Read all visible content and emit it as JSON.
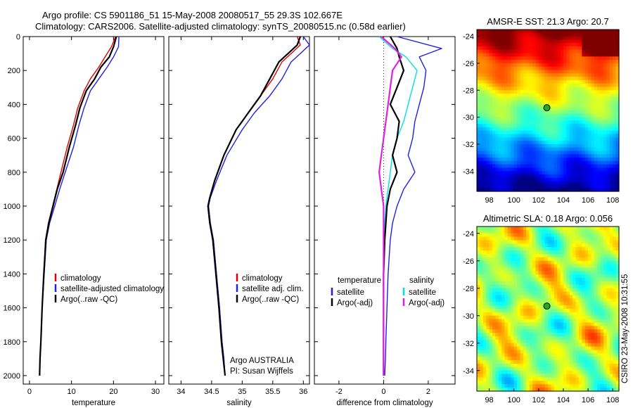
{
  "header": {
    "title_line1": "Argo profile: CS 5901186_51 15-May-2008 20080517_55 29.3S 102.667E",
    "title_line2": "Climatology: CARS2006. Satellite-adjusted climatology: synTS_20080515.nc (0.58d earlier)"
  },
  "side_label": "CSIRO 23-May-2008 10:31:55",
  "colors": {
    "climatology": "#dd0000",
    "satellite": "#1f1fe6",
    "argo": "#000000",
    "satellite_diff_salinity": "#00e0e0",
    "argo_diff_salinity": "#e020e0",
    "float_marker": "#22aa22"
  },
  "chart_data": [
    {
      "type": "line",
      "xlabel": "temperature",
      "ylabel": "",
      "xlim": [
        -1.5,
        32
      ],
      "ylim": [
        2050,
        0
      ],
      "y_reversed": true,
      "xticks": [
        0,
        10,
        20,
        30
      ],
      "yticks": [
        0,
        200,
        400,
        600,
        800,
        1000,
        1200,
        1400,
        1600,
        1800,
        2000
      ],
      "legend": [
        "climatology",
        "satellite-adjusted climatology",
        "Argo(..raw -QC)"
      ],
      "legend_position": "lower-right",
      "series": [
        {
          "name": "climatology",
          "color_key": "climatology",
          "x": [
            20.5,
            19.5,
            18.0,
            16.5,
            14.5,
            13.0,
            11.5,
            10.5,
            9.0,
            7.5,
            6.5,
            5.5,
            4.5,
            3.8,
            3.4,
            3.0,
            2.7,
            2.5,
            2.4
          ],
          "y": [
            0,
            60,
            120,
            180,
            250,
            320,
            420,
            520,
            650,
            800,
            900,
            1000,
            1100,
            1200,
            1400,
            1600,
            1800,
            1900,
            2000
          ]
        },
        {
          "name": "satellite-adjusted climatology",
          "color_key": "satellite",
          "x": [
            21.3,
            21.2,
            20.0,
            18.5,
            16.5,
            14.5,
            13.0,
            11.8,
            10.5,
            8.5,
            7.2,
            6.0,
            4.8,
            4.0,
            3.5,
            3.0,
            2.7,
            2.5,
            2.4
          ],
          "y": [
            0,
            60,
            120,
            180,
            250,
            320,
            420,
            520,
            650,
            800,
            900,
            1000,
            1100,
            1200,
            1400,
            1600,
            1800,
            1900,
            2000
          ]
        },
        {
          "name": "Argo(..raw -QC)",
          "color_key": "argo",
          "x": [
            20.7,
            20.0,
            19.0,
            17.0,
            15.5,
            13.5,
            12.0,
            11.0,
            9.5,
            8.0,
            6.6,
            5.6,
            4.6,
            3.9,
            3.4,
            3.0,
            2.7,
            2.5,
            2.4
          ],
          "y": [
            0,
            60,
            120,
            180,
            250,
            320,
            420,
            520,
            650,
            800,
            900,
            1000,
            1100,
            1200,
            1400,
            1600,
            1800,
            1900,
            2000
          ]
        }
      ]
    },
    {
      "type": "line",
      "xlabel": "salinity",
      "ylabel": "",
      "xlim": [
        33.8,
        36.1
      ],
      "ylim": [
        2050,
        0
      ],
      "y_reversed": true,
      "xticks": [
        34,
        34.5,
        35,
        35.5,
        36
      ],
      "legend": [
        "climatology",
        "satellite adj. clim.",
        "Argo(..raw -QC)"
      ],
      "legend_position": "lower-right",
      "annotations": [
        "Argo AUSTRALIA",
        "PI: Susan Wijffels"
      ],
      "series": [
        {
          "name": "climatology",
          "color_key": "climatology",
          "x": [
            35.9,
            35.95,
            35.8,
            35.65,
            35.5,
            35.3,
            35.1,
            34.9,
            34.7,
            34.55,
            34.47,
            34.45,
            34.48,
            34.53,
            34.58,
            34.63,
            34.67,
            34.7,
            34.72
          ],
          "y": [
            0,
            50,
            100,
            150,
            250,
            350,
            450,
            550,
            700,
            850,
            950,
            1000,
            1100,
            1200,
            1400,
            1600,
            1800,
            1900,
            2000
          ]
        },
        {
          "name": "satellite adj. clim.",
          "color_key": "satellite",
          "x": [
            36.0,
            36.1,
            35.95,
            35.8,
            35.65,
            35.45,
            35.2,
            35.0,
            34.75,
            34.58,
            34.48,
            34.45,
            34.48,
            34.53,
            34.58,
            34.63,
            34.67,
            34.7,
            34.72
          ],
          "y": [
            0,
            50,
            100,
            150,
            250,
            350,
            450,
            550,
            700,
            850,
            950,
            1000,
            1100,
            1200,
            1400,
            1600,
            1800,
            1900,
            2000
          ]
        },
        {
          "name": "Argo(..raw -QC)",
          "color_key": "argo",
          "x": [
            35.95,
            35.9,
            35.75,
            35.6,
            35.45,
            35.3,
            35.1,
            34.9,
            34.7,
            34.55,
            34.47,
            34.44,
            34.47,
            34.52,
            34.57,
            34.62,
            34.66,
            34.69,
            34.72
          ],
          "y": [
            0,
            50,
            100,
            150,
            250,
            350,
            450,
            550,
            700,
            850,
            950,
            1000,
            1100,
            1200,
            1400,
            1600,
            1800,
            1900,
            2000
          ]
        }
      ]
    },
    {
      "type": "line",
      "xlabel": "difference from climatology",
      "ylabel": "",
      "xlim": [
        -3.1,
        3.2
      ],
      "ylim": [
        2050,
        0
      ],
      "y_reversed": true,
      "xticks": [
        -2,
        0,
        2
      ],
      "legend_groups": [
        {
          "title": "temperature",
          "entries": [
            "satellite",
            "Argo(-adj)"
          ]
        },
        {
          "title": "salinity",
          "entries": [
            "satellite",
            "Argo(-adj)"
          ]
        }
      ],
      "legend_position": "lower-center",
      "series": [
        {
          "name": "temperature satellite",
          "color_key": "satellite",
          "x": [
            0.6,
            2.6,
            1.6,
            1.9,
            1.8,
            1.6,
            1.4,
            1.3,
            1.1,
            1.4,
            0.9,
            0.6,
            0.4,
            0.3,
            0.2,
            0.15,
            0.1,
            0.08,
            0.05
          ],
          "y": [
            0,
            70,
            120,
            200,
            300,
            400,
            500,
            600,
            700,
            800,
            900,
            1000,
            1100,
            1200,
            1400,
            1600,
            1800,
            1900,
            2000
          ]
        },
        {
          "name": "salinity satellite",
          "color_key": "satellite_diff_salinity",
          "x": [
            -0.2,
            0.4,
            1.0,
            1.5,
            1.3,
            1.1,
            0.9,
            0.6,
            0.4,
            0.3,
            0.2,
            0.1,
            0.05,
            0.0,
            0.0,
            0.0,
            0.0,
            0.0,
            0.0
          ],
          "y": [
            0,
            70,
            120,
            200,
            300,
            400,
            500,
            600,
            700,
            800,
            900,
            1000,
            1100,
            1200,
            1400,
            1600,
            1800,
            1900,
            2000
          ]
        },
        {
          "name": "temperature Argo(-adj)",
          "color_key": "argo",
          "x": [
            0.3,
            0.6,
            0.7,
            0.9,
            0.6,
            0.3,
            0.7,
            0.6,
            0.4,
            0.6,
            0.3,
            0.15,
            0.1,
            0.05,
            0.0,
            0.0,
            0.0,
            0.0,
            0.0
          ],
          "y": [
            0,
            70,
            120,
            200,
            300,
            400,
            500,
            600,
            700,
            800,
            900,
            1000,
            1100,
            1200,
            1400,
            1600,
            1800,
            1900,
            2000
          ]
        },
        {
          "name": "salinity Argo(-adj)",
          "color_key": "argo_diff_salinity",
          "x": [
            -0.1,
            0.5,
            0.8,
            0.4,
            0.3,
            0.2,
            0.1,
            0.0,
            -0.1,
            -0.2,
            -0.1,
            0.0,
            0.0,
            0.0,
            0.0,
            0.0,
            0.0,
            0.0,
            0.0
          ],
          "y": [
            0,
            70,
            120,
            200,
            300,
            400,
            500,
            600,
            700,
            800,
            900,
            1000,
            1100,
            1200,
            1400,
            1600,
            1800,
            1900,
            2000
          ]
        }
      ]
    },
    {
      "type": "heatmap",
      "title": "AMSR-E SST: 21.3 Argo: 20.7",
      "xlim": [
        97,
        108.5
      ],
      "ylim": [
        -35.5,
        -23.5
      ],
      "xticks": [
        98,
        100,
        102,
        104,
        106,
        108
      ],
      "yticks": [
        -24,
        -26,
        -28,
        -30,
        -32,
        -34
      ],
      "colormap": "jet",
      "float_position": [
        102.667,
        -29.3
      ]
    },
    {
      "type": "heatmap",
      "title": "Altimetric SLA: 0.18 Argo: 0.056",
      "xlim": [
        97,
        108.5
      ],
      "ylim": [
        -35.5,
        -23.5
      ],
      "xticks": [
        98,
        100,
        102,
        104,
        106,
        108
      ],
      "yticks": [
        -24,
        -26,
        -28,
        -30,
        -32,
        -34
      ],
      "colormap": "jet",
      "float_position": [
        102.667,
        -29.3
      ]
    }
  ]
}
